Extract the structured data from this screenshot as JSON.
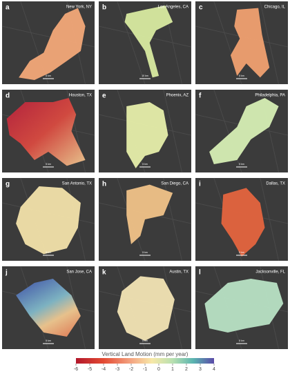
{
  "panels": [
    {
      "letter": "a",
      "city": "New York, NY",
      "scale": "5 km"
    },
    {
      "letter": "b",
      "city": "Los Angeles, CA",
      "scale": "10 km"
    },
    {
      "letter": "c",
      "city": "Chicago, IL",
      "scale": "5 km"
    },
    {
      "letter": "d",
      "city": "Houston, TX",
      "scale": "5 km"
    },
    {
      "letter": "e",
      "city": "Phoenix, AZ",
      "scale": "5 km"
    },
    {
      "letter": "f",
      "city": "Philadelphia, PA",
      "scale": "5 km"
    },
    {
      "letter": "g",
      "city": "San Antonio, TX",
      "scale": "5 km"
    },
    {
      "letter": "h",
      "city": "San Diego, CA",
      "scale": "5 km"
    },
    {
      "letter": "i",
      "city": "Dallas, TX",
      "scale": "5 km"
    },
    {
      "letter": "j",
      "city": "San Jose, CA",
      "scale": "5 km"
    },
    {
      "letter": "k",
      "city": "Austin, TX",
      "scale": "5 km"
    },
    {
      "letter": "l",
      "city": "Jacksonville, FL",
      "scale": "5 km"
    }
  ],
  "colorbar": {
    "title": "Vertical Land Motion (mm per year)",
    "range": [
      -6,
      4
    ],
    "ticks": [
      -6,
      -5,
      -4,
      -3,
      -2,
      -1,
      0,
      1,
      2,
      3,
      4
    ]
  }
}
